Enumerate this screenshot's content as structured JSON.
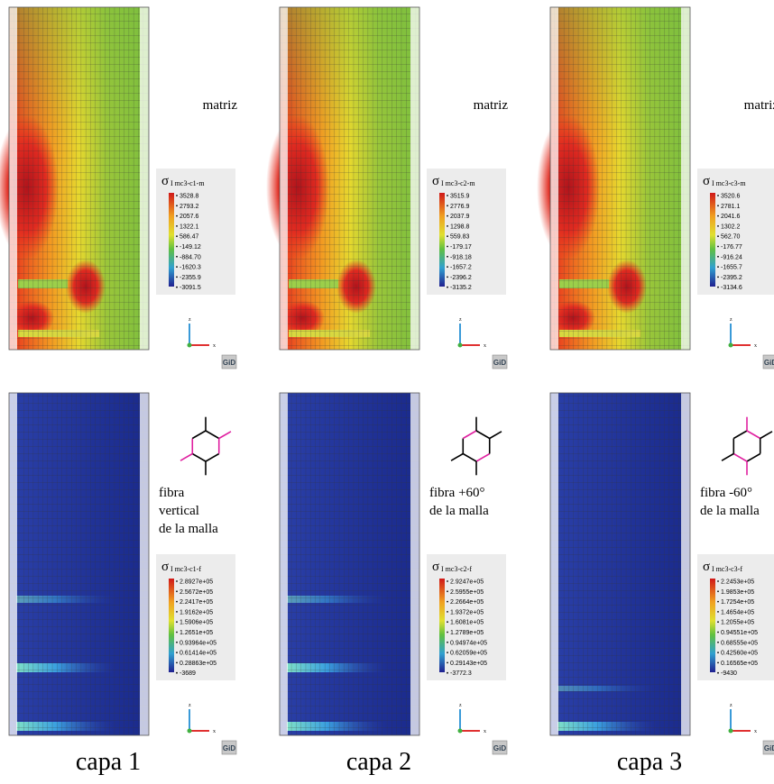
{
  "panels": [
    {
      "column": 1,
      "row": "top",
      "label_lines": [
        "matriz"
      ],
      "legend": {
        "symbol": "σ",
        "subscript": "I mc3-c1-m",
        "values": [
          "3528.8",
          "2793.2",
          "2057.6",
          "1322.1",
          "586.47",
          "-149.12",
          "-884.70",
          "-1620.3",
          "-2355.9",
          "-3091.5"
        ]
      }
    },
    {
      "column": 2,
      "row": "top",
      "label_lines": [
        "matriz"
      ],
      "legend": {
        "symbol": "σ",
        "subscript": "I mc3-c2-m",
        "values": [
          "3515.9",
          "2776.9",
          "2037.9",
          "1298.8",
          "559.83",
          "-179.17",
          "-918.18",
          "-1657.2",
          "-2396.2",
          "-3135.2"
        ]
      }
    },
    {
      "column": 3,
      "row": "top",
      "label_lines": [
        "matriz"
      ],
      "legend": {
        "symbol": "σ",
        "subscript": "I mc3-c3-m",
        "values": [
          "3520.6",
          "2781.1",
          "2041.6",
          "1302.2",
          "562.70",
          "-176.77",
          "-916.24",
          "-1655.7",
          "-2395.2",
          "-3134.6"
        ]
      }
    },
    {
      "column": 1,
      "row": "bottom",
      "label_lines": [
        "fibra",
        "vertical",
        "de la malla"
      ],
      "legend": {
        "symbol": "σ",
        "subscript": "I mc3-c1-f",
        "values": [
          "2.8927e+05",
          "2.5672e+05",
          "2.2417e+05",
          "1.9162e+05",
          "1.5906e+05",
          "1.2651e+05",
          "0.93964e+05",
          "0.61414e+05",
          "0.28863e+05",
          "-3689"
        ]
      }
    },
    {
      "column": 2,
      "row": "bottom",
      "label_lines": [
        "fibra +60°",
        "de la malla"
      ],
      "legend": {
        "symbol": "σ",
        "subscript": "I mc3-c2-f",
        "values": [
          "2.9247e+05",
          "2.5955e+05",
          "2.2664e+05",
          "1.9372e+05",
          "1.6081e+05",
          "1.2789e+05",
          "0.94974e+05",
          "0.62059e+05",
          "0.29143e+05",
          "-3772.3"
        ]
      }
    },
    {
      "column": 3,
      "row": "bottom",
      "label_lines": [
        "fibra -60°",
        "de la malla"
      ],
      "legend": {
        "symbol": "σ",
        "subscript": "I mc3-c3-f",
        "values": [
          "2.2453e+05",
          "1.9853e+05",
          "1.7254e+05",
          "1.4654e+05",
          "1.2055e+05",
          "0.94551e+05",
          "0.68555e+05",
          "0.42560e+05",
          "0.16565e+05",
          "-9430"
        ]
      }
    }
  ],
  "axis_labels": {
    "z": "z",
    "x": "x"
  },
  "logo": "GiD",
  "captions": [
    "capa 1",
    "capa 2",
    "capa 3"
  ]
}
